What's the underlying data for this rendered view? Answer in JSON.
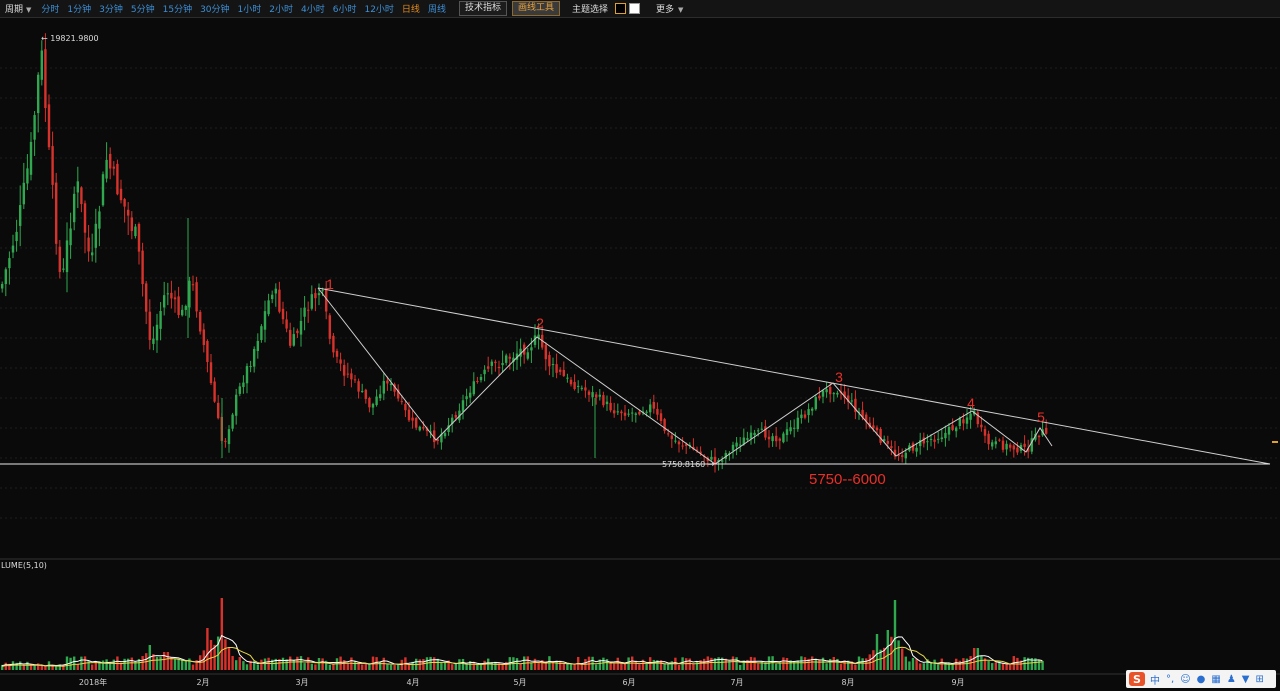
{
  "toolbar": {
    "period_label": "周期",
    "intervals": [
      "分时",
      "1分钟",
      "3分钟",
      "5分钟",
      "15分钟",
      "30分钟",
      "1小时",
      "2小时",
      "4小时",
      "6小时",
      "12小时",
      "日线",
      "周线"
    ],
    "active_interval": "日线",
    "indicator_button": "技术指标",
    "drawing_button": "画线工具",
    "theme_label": "主题选择",
    "more_label": "更多"
  },
  "chart_data": {
    "type": "candlestick",
    "price_high_label": "19821.9800",
    "price_low_label": "5750.8160",
    "support_line_price": 5750.816,
    "wave_labels": [
      "1",
      "2",
      "3",
      "4",
      "5"
    ],
    "target_annotation": "5750--6000",
    "volume_indicator": "LUME(5,10)",
    "x_tick_labels": [
      "2018年",
      "2月",
      "3月",
      "4月",
      "5月",
      "6月",
      "7月",
      "8月",
      "9月"
    ],
    "colors": {
      "up": "#2fa84f",
      "down": "#d8322c",
      "wave_text": "#e8302a",
      "ma5": "#ffffff",
      "ma10": "#e8d64a"
    }
  },
  "ime": {
    "text": "中",
    "punct": "°,"
  }
}
